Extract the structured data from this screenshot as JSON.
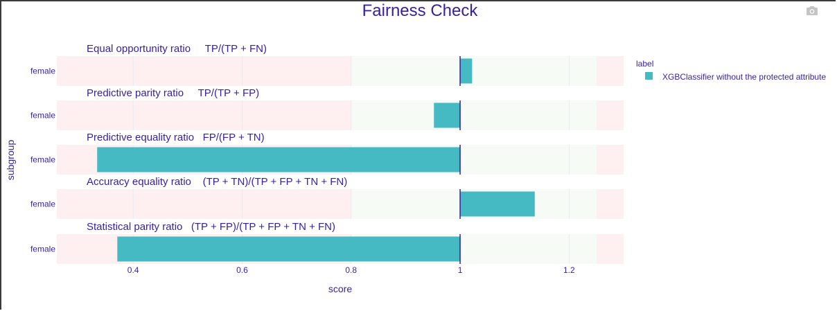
{
  "chart_data": {
    "type": "bar",
    "orientation": "horizontal",
    "title": "Fairness Check",
    "xlabel": "score",
    "ylabel": "subgroup",
    "xlim": [
      0.26,
      1.3
    ],
    "xticks": [
      "0.4",
      "0.6",
      "0.8",
      "1",
      "1.2"
    ],
    "xtick_values": [
      0.4,
      0.6,
      0.8,
      1.0,
      1.2
    ],
    "baseline": 1,
    "acceptable_range": [
      0.8,
      1.25
    ],
    "legend": {
      "title": "label",
      "placement": "top-right",
      "entries": [
        "XGBClassifier without the protected attribute"
      ]
    },
    "colors": {
      "bar": "#46bac2",
      "fair_zone": "#f6fbf6",
      "unfair_zone": "#fef0f0",
      "baseline": "#371ea3",
      "text": "#371ea3"
    },
    "panels": [
      {
        "title": "Equal opportunity ratio     TP/(TP + FN)",
        "subgroup": "female",
        "value": 1.022
      },
      {
        "title": "Predictive parity ratio     TP/(TP + FP)",
        "subgroup": "female",
        "value": 0.952
      },
      {
        "title": "Predictive equality ratio   FP/(FP + TN)",
        "subgroup": "female",
        "value": 0.334
      },
      {
        "title": "Accuracy equality ratio    (TP + TN)/(TP + FP + TN + FN)",
        "subgroup": "female",
        "value": 1.137
      },
      {
        "title": "Statistical parity ratio   (TP + FP)/(TP + FP + TN + FN)",
        "subgroup": "female",
        "value": 0.371
      }
    ]
  },
  "toolbar": {
    "camera_icon": "camera-icon"
  }
}
